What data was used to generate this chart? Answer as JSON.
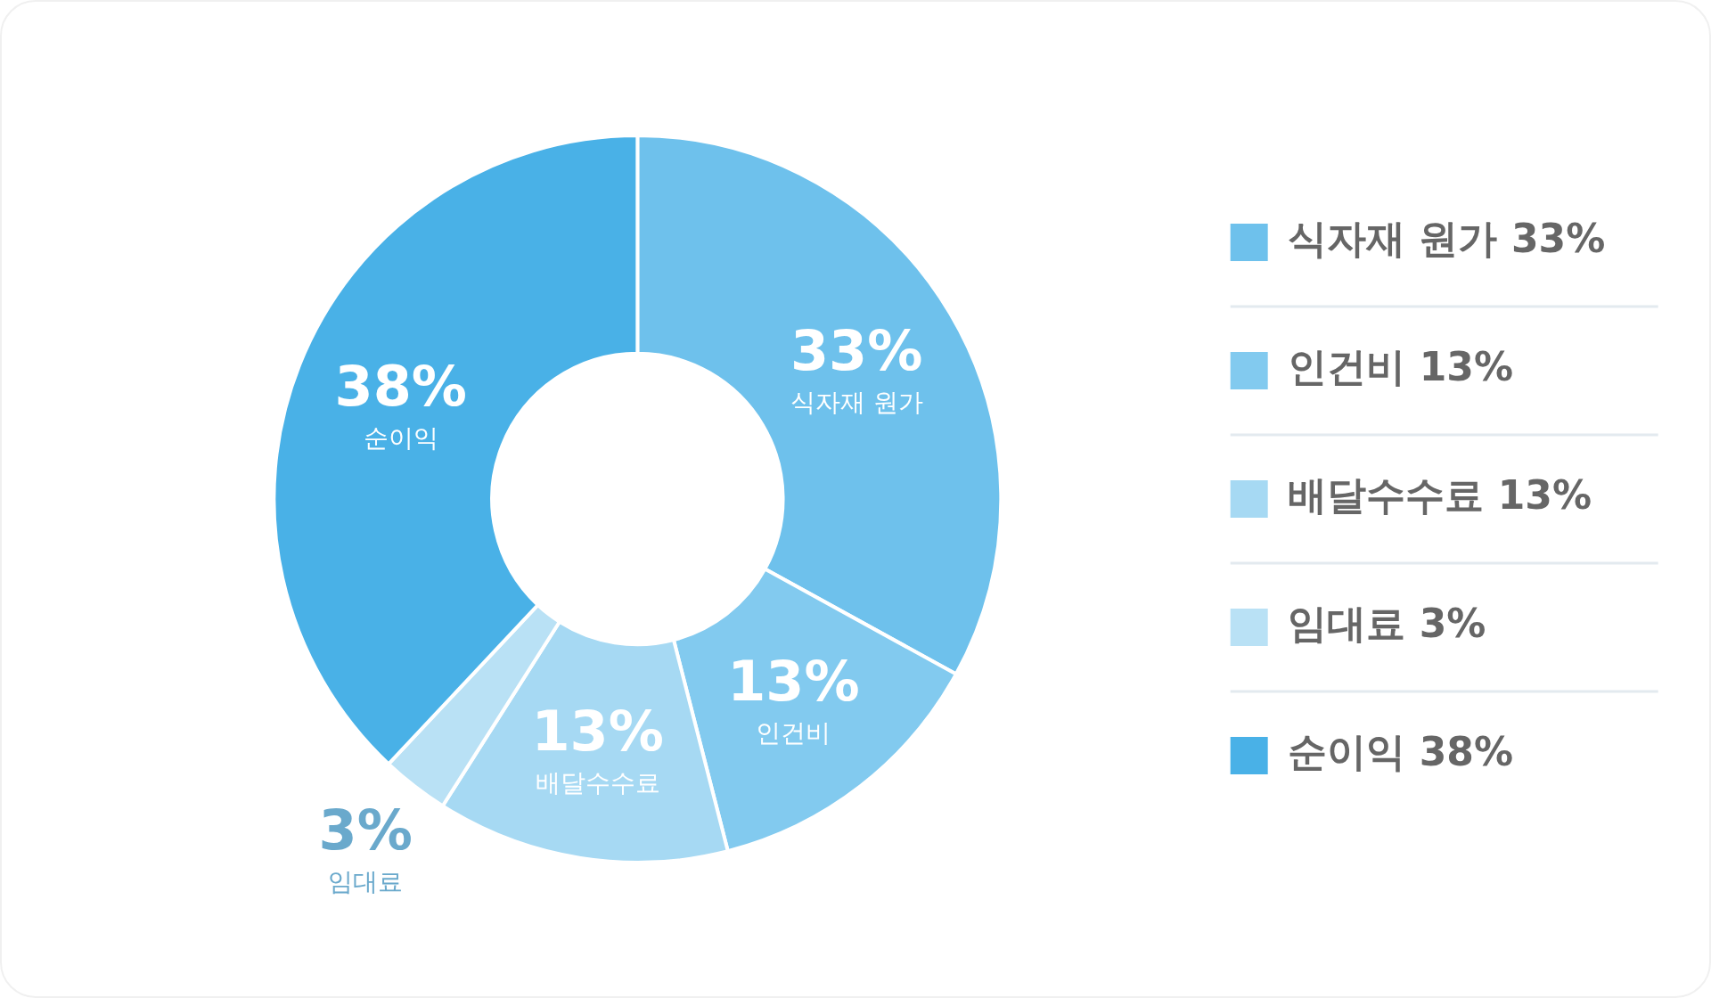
{
  "chart_data": {
    "type": "donut",
    "categories": [
      "식자재 원가",
      "인건비",
      "배달수수료",
      "임대료",
      "순이익"
    ],
    "values": [
      33,
      13,
      13,
      3,
      38
    ],
    "value_labels": [
      "33%",
      "13%",
      "13%",
      "3%",
      "38%"
    ],
    "colors": [
      "#6ec1ec",
      "#82caef",
      "#a6d9f3",
      "#b9e1f5",
      "#49b1e7"
    ],
    "legend": "right"
  }
}
